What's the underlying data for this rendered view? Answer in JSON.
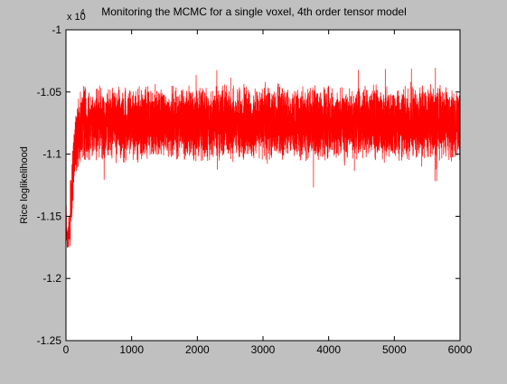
{
  "window": {
    "background": "#c0c0c0"
  },
  "chart_data": {
    "type": "line",
    "title": "Monitoring the MCMC for a single voxel,  4th order tensor model",
    "xlabel": "",
    "ylabel": "Rice loglikelihood",
    "y_exponent_label": "x 10",
    "y_exponent": "4",
    "xlim": [
      0,
      6000
    ],
    "ylim": [
      -1.25,
      -1.0
    ],
    "y_scale_factor": 10000,
    "x_ticks": [
      "0",
      "1000",
      "2000",
      "3000",
      "4000",
      "5000",
      "6000"
    ],
    "y_ticks": [
      "-1",
      "-1.05",
      "-1.1",
      "-1.15",
      "-1.2",
      "-1.25"
    ],
    "grid": false,
    "series": [
      {
        "color": "#ff0000",
        "description_points": [
          [
            0,
            -1.14
          ],
          [
            20,
            -1.175
          ],
          [
            50,
            -1.16
          ],
          [
            100,
            -1.12
          ],
          [
            150,
            -1.09
          ],
          [
            250,
            -1.075
          ],
          [
            500,
            -1.075
          ],
          [
            1000,
            -1.075
          ],
          [
            2000,
            -1.075
          ],
          [
            3000,
            -1.075
          ],
          [
            4000,
            -1.075
          ],
          [
            5000,
            -1.075
          ],
          [
            6000,
            -1.075
          ]
        ],
        "typical_band": [
          -1.095,
          -1.05
        ],
        "min_value": -1.175,
        "max_value": -1.0,
        "n_samples": 6000
      }
    ]
  }
}
